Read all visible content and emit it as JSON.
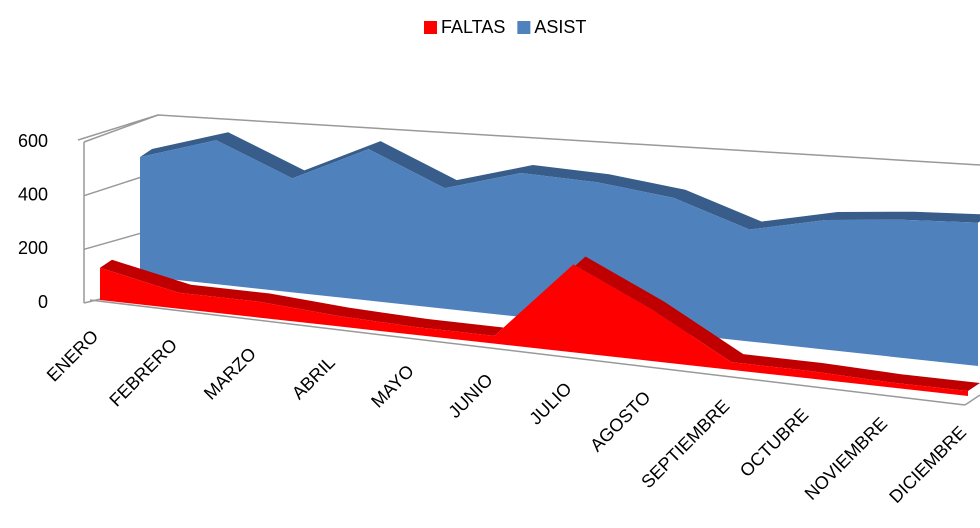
{
  "chart_data": {
    "type": "area3d",
    "categories": [
      "ENERO",
      "FEBRERO",
      "MARZO",
      "ABRIL",
      "MAYO",
      "JUNIO",
      "JULIO",
      "AGOSTO",
      "SEPTIEMBRE",
      "OCTUBRE",
      "NOVIEMBRE",
      "DICIEMBRE"
    ],
    "series": [
      {
        "name": "FALTAS",
        "color": "#ff0000",
        "values": [
          120,
          60,
          60,
          40,
          30,
          30,
          340,
          200,
          30,
          30,
          20,
          20
        ]
      },
      {
        "name": "ASIST",
        "color": "#4f81bd",
        "values": [
          420,
          500,
          390,
          510,
          400,
          470,
          460,
          430,
          350,
          400,
          420,
          430
        ]
      }
    ],
    "ylim": [
      0,
      600
    ],
    "yticks": [
      0,
      200,
      400,
      600
    ],
    "grid": true,
    "legend": "top"
  }
}
